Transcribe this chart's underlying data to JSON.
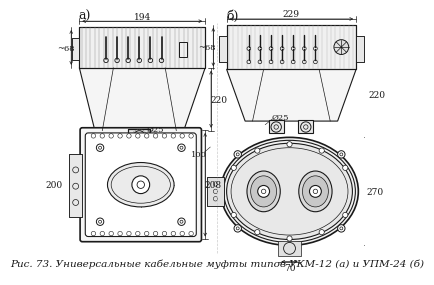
{
  "title": "",
  "caption": "Рис. 73. Универсальные кабельные муфты типов УКМ-12 (а) и УПМ-24 (б)",
  "caption_fontsize": 7.5,
  "bg_color": "#ffffff",
  "drawing_color": "#1a1a1a",
  "label_a": "а)",
  "label_b": "б)",
  "dims_ukm": {
    "width": "194",
    "height_side": "220",
    "diameter": "Ø25",
    "top_height": "~68",
    "bottom_width": "208",
    "bottom_height": "200"
  },
  "dims_upm": {
    "width": "229",
    "height_side": "220",
    "diameter": "Ø25",
    "top_height": "~68",
    "bottom_width": "270",
    "bottom_dim1": "100",
    "bottom_dim2": "70"
  }
}
